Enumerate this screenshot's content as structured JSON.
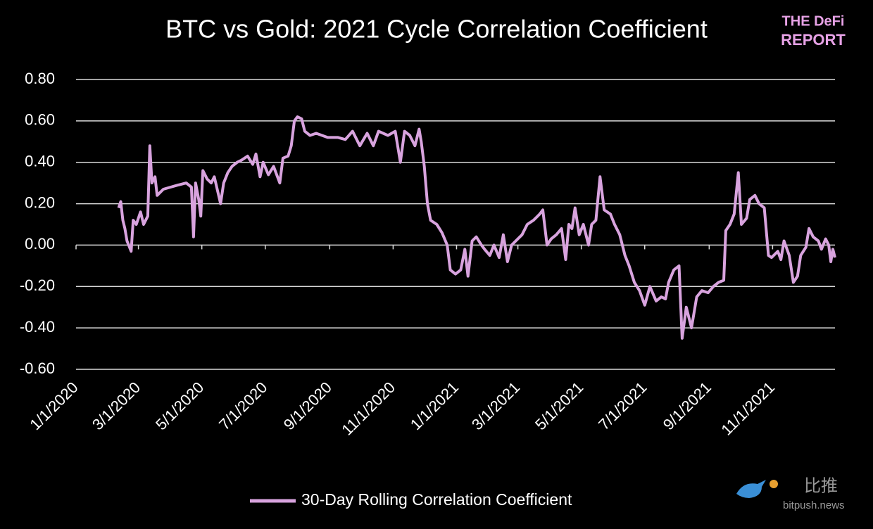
{
  "chart_data": {
    "type": "line",
    "title": "BTC vs Gold: 2021 Cycle Correlation Coefficient",
    "x": [
      "2/11/2020",
      "2/13/2020",
      "2/15/2020",
      "2/17/2020",
      "2/19/2020",
      "2/23/2020",
      "2/25/2020",
      "2/28/2020",
      "3/3/2020",
      "3/6/2020",
      "3/10/2020",
      "3/12/2020",
      "3/14/2020",
      "3/17/2020",
      "3/19/2020",
      "3/25/2020",
      "4/1/2020",
      "4/8/2020",
      "4/16/2020",
      "4/21/2020",
      "4/23/2020",
      "4/25/2020",
      "4/28/2020",
      "4/30/2020",
      "5/2/2020",
      "5/6/2020",
      "5/10/2020",
      "5/13/2020",
      "5/19/2020",
      "5/22/2020",
      "5/26/2020",
      "5/30/2020",
      "6/4/2020",
      "6/8/2020",
      "6/14/2020",
      "6/19/2020",
      "6/22/2020",
      "6/26/2020",
      "6/29/2020",
      "7/4/2020",
      "7/9/2020",
      "7/15/2020",
      "7/18/2020",
      "7/23/2020",
      "7/26/2020",
      "7/29/2020",
      "8/1/2020",
      "8/5/2020",
      "8/8/2020",
      "8/13/2020",
      "8/19/2020",
      "8/30/2020",
      "9/9/2020",
      "9/16/2020",
      "9/23/2020",
      "9/30/2020",
      "10/7/2020",
      "10/13/2020",
      "10/18/2020",
      "10/27/2020",
      "11/3/2020",
      "11/8/2020",
      "11/12/2020",
      "11/17/2020",
      "11/22/2020",
      "11/26/2020",
      "11/28/2020",
      "12/1/2020",
      "12/4/2020",
      "12/7/2020",
      "12/13/2020",
      "12/18/2020",
      "12/23/2020",
      "12/26/2020",
      "12/31/2020",
      "1/5/2021",
      "1/9/2021",
      "1/12/2021",
      "1/16/2021",
      "1/20/2021",
      "1/25/2021",
      "1/28/2021",
      "2/2/2021",
      "2/6/2021",
      "2/11/2021",
      "2/15/2021",
      "2/19/2021",
      "2/23/2021",
      "2/27/2021",
      "3/5/2021",
      "3/10/2021",
      "3/16/2021",
      "3/22/2021",
      "3/25/2021",
      "3/29/2021",
      "4/2/2021",
      "4/7/2021",
      "4/12/2021",
      "4/16/2021",
      "4/19/2021",
      "4/22/2021",
      "4/25/2021",
      "4/29/2021",
      "5/3/2021",
      "5/8/2021",
      "5/11/2021",
      "5/15/2021",
      "5/19/2021",
      "5/23/2021",
      "5/29/2021",
      "6/2/2021",
      "6/7/2021",
      "6/12/2021",
      "6/16/2021",
      "6/21/2021",
      "6/26/2021",
      "7/1/2021",
      "7/6/2021",
      "7/12/2021",
      "7/17/2021",
      "7/21/2021",
      "7/24/2021",
      "7/29/2021",
      "8/3/2021",
      "8/6/2021",
      "8/10/2021",
      "8/15/2021",
      "8/20/2021",
      "8/25/2021",
      "8/31/2021",
      "9/5/2021",
      "9/10/2021",
      "9/15/2021",
      "9/17/2021",
      "9/21/2021",
      "9/25/2021",
      "9/29/2021",
      "10/2/2021",
      "10/7/2021",
      "10/10/2021",
      "10/15/2021",
      "10/19/2021",
      "10/24/2021",
      "10/28/2021",
      "10/31/2021",
      "11/6/2021",
      "11/9/2021",
      "11/12/2021",
      "11/17/2021",
      "11/21/2021",
      "11/25/2021",
      "11/28/2021",
      "12/3/2021",
      "12/6/2021",
      "12/10/2021",
      "12/15/2021",
      "12/18/2021",
      "12/22/2021",
      "12/25/2021",
      "12/27/2021",
      "12/29/2021",
      "12/30/2021",
      "12/31/2021"
    ],
    "series": [
      {
        "name": "30-Day Rolling Correlation Coefficient",
        "color": "#d8a3de",
        "values": [
          0.18,
          0.21,
          0.12,
          0.08,
          0.02,
          -0.03,
          0.12,
          0.1,
          0.16,
          0.1,
          0.14,
          0.48,
          0.3,
          0.33,
          0.24,
          0.27,
          0.28,
          0.29,
          0.3,
          0.28,
          0.04,
          0.3,
          0.22,
          0.14,
          0.36,
          0.32,
          0.3,
          0.33,
          0.2,
          0.3,
          0.35,
          0.38,
          0.4,
          0.41,
          0.43,
          0.39,
          0.44,
          0.33,
          0.4,
          0.34,
          0.38,
          0.3,
          0.42,
          0.43,
          0.48,
          0.6,
          0.62,
          0.61,
          0.55,
          0.53,
          0.54,
          0.52,
          0.52,
          0.51,
          0.55,
          0.48,
          0.54,
          0.48,
          0.55,
          0.53,
          0.55,
          0.4,
          0.55,
          0.53,
          0.48,
          0.56,
          0.5,
          0.38,
          0.2,
          0.12,
          0.1,
          0.06,
          0.0,
          -0.12,
          -0.14,
          -0.12,
          -0.02,
          -0.15,
          0.02,
          0.04,
          0.0,
          -0.02,
          -0.05,
          0.0,
          -0.06,
          0.05,
          -0.08,
          0.0,
          0.02,
          0.05,
          0.1,
          0.12,
          0.15,
          0.17,
          0.0,
          0.03,
          0.05,
          0.08,
          -0.07,
          0.1,
          0.08,
          0.18,
          0.05,
          0.1,
          0.0,
          0.1,
          0.12,
          0.33,
          0.17,
          0.15,
          0.1,
          0.05,
          -0.05,
          -0.1,
          -0.18,
          -0.22,
          -0.29,
          -0.2,
          -0.27,
          -0.25,
          -0.26,
          -0.18,
          -0.12,
          -0.1,
          -0.45,
          -0.3,
          -0.4,
          -0.25,
          -0.22,
          -0.23,
          -0.2,
          -0.18,
          -0.17,
          0.07,
          0.1,
          0.15,
          0.35,
          0.1,
          0.13,
          0.22,
          0.24,
          0.2,
          0.18,
          -0.05,
          -0.06,
          -0.03,
          -0.07,
          0.02,
          -0.05,
          -0.18,
          -0.15,
          -0.05,
          -0.01,
          0.08,
          0.04,
          0.02,
          -0.02,
          0.03,
          0.0,
          -0.08,
          -0.02,
          -0.04,
          -0.06
        ]
      }
    ],
    "xlim": [
      "1/1/2020",
      "12/31/2021"
    ],
    "xticks": [
      "1/1/2020",
      "3/1/2020",
      "5/1/2020",
      "7/1/2020",
      "9/1/2020",
      "11/1/2020",
      "1/1/2021",
      "3/1/2021",
      "5/1/2021",
      "7/1/2021",
      "9/1/2021",
      "11/1/2021"
    ],
    "ylim": [
      -0.6,
      0.8
    ],
    "yticks": [
      {
        "value": -0.6,
        "label": "-0.60"
      },
      {
        "value": -0.4,
        "label": "-0.40"
      },
      {
        "value": -0.2,
        "label": "-0.20"
      },
      {
        "value": 0,
        "label": "0.00"
      },
      {
        "value": 0.2,
        "label": "0.20"
      },
      {
        "value": 0.4,
        "label": "0.40"
      },
      {
        "value": 0.6,
        "label": "0.60"
      },
      {
        "value": 0.8,
        "label": "0.80"
      }
    ],
    "grid": true,
    "legend": "bottom"
  },
  "branding": {
    "logo_top": "THE DeFi",
    "logo_bottom": "REPORT",
    "watermark_name": "比推",
    "watermark_url": "bitpush.news"
  }
}
